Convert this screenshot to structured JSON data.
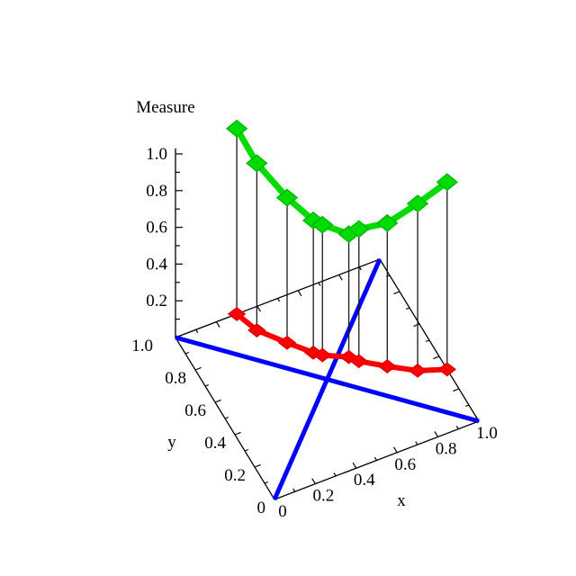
{
  "title": "Measure",
  "background": "#ffffff",
  "axes": {
    "x": {
      "title": "x",
      "tick_labels": [
        "0",
        "0.2",
        "0.4",
        "0.6",
        "0.8",
        "1.0"
      ],
      "tick_values": [
        0,
        0.2,
        0.4,
        0.6,
        0.8,
        1.0
      ],
      "minor_tick_values": [
        0.1,
        0.3,
        0.5,
        0.7,
        0.9
      ],
      "range": [
        0,
        1
      ]
    },
    "y": {
      "title": "y",
      "tick_labels": [
        "0",
        "0.2",
        "0.4",
        "0.6",
        "0.8",
        "1.0"
      ],
      "tick_values": [
        0,
        0.2,
        0.4,
        0.6,
        0.8,
        1.0
      ],
      "minor_tick_values": [
        0.1,
        0.3,
        0.5,
        0.7,
        0.9
      ],
      "range": [
        0,
        1
      ]
    },
    "z": {
      "title": "Measure",
      "tick_labels": [
        "0.2",
        "0.4",
        "0.6",
        "0.8",
        "1.0"
      ],
      "tick_values": [
        0.2,
        0.4,
        0.6,
        0.8,
        1.0
      ],
      "minor_tick_values": [
        0.1,
        0.3,
        0.5,
        0.7,
        0.9
      ],
      "range": [
        0,
        1
      ]
    }
  },
  "chart_data": {
    "type": "line",
    "subtype": "3d-line-scatter",
    "title": "Measure",
    "xlabel": "x",
    "ylabel": "y",
    "zlabel": "Measure",
    "xlim": [
      0,
      1
    ],
    "ylim": [
      0,
      1
    ],
    "zlim": [
      0,
      1
    ],
    "grid": false,
    "legend": "none",
    "series": [
      {
        "name": "measure-curve",
        "color": "#00DC00",
        "marker_edge_color": "#00B800",
        "marker": "diamond",
        "line_width": 7,
        "marker_rx": 11,
        "marker_ry": 9,
        "points": [
          [
            0.3,
            1.0,
            1.01
          ],
          [
            0.34,
            0.88,
            0.91
          ],
          [
            0.43,
            0.76,
            0.79
          ],
          [
            0.51,
            0.66,
            0.72
          ],
          [
            0.54,
            0.63,
            0.71
          ],
          [
            0.64,
            0.57,
            0.67
          ],
          [
            0.67,
            0.53,
            0.72
          ],
          [
            0.77,
            0.45,
            0.78
          ],
          [
            0.88,
            0.37,
            0.91
          ],
          [
            1.0,
            0.32,
            1.02
          ]
        ]
      },
      {
        "name": "base-projection-curve",
        "color": "#FF0000",
        "marker_edge_color": "#DD0000",
        "marker": "diamond",
        "line_width": 6,
        "marker_rx": 9,
        "marker_ry": 7,
        "points": [
          [
            0.3,
            1.0,
            0
          ],
          [
            0.34,
            0.88,
            0
          ],
          [
            0.43,
            0.76,
            0
          ],
          [
            0.51,
            0.66,
            0
          ],
          [
            0.54,
            0.63,
            0
          ],
          [
            0.64,
            0.57,
            0
          ],
          [
            0.67,
            0.53,
            0
          ],
          [
            0.77,
            0.45,
            0
          ],
          [
            0.88,
            0.37,
            0
          ],
          [
            1.0,
            0.32,
            0
          ]
        ]
      }
    ],
    "reference_lines": [
      {
        "name": "base-diagonal-main",
        "color": "#0000FF",
        "width": 5,
        "from": [
          0,
          0,
          0
        ],
        "to": [
          1,
          1,
          0
        ]
      },
      {
        "name": "base-diagonal-anti",
        "color": "#0000FF",
        "width": 5,
        "from": [
          0,
          1,
          0
        ],
        "to": [
          1,
          0,
          0
        ]
      }
    ],
    "drop_lines": {
      "enabled": true,
      "color": "#1a1a1a",
      "width": 1.3
    },
    "axis_color": "#000000"
  }
}
